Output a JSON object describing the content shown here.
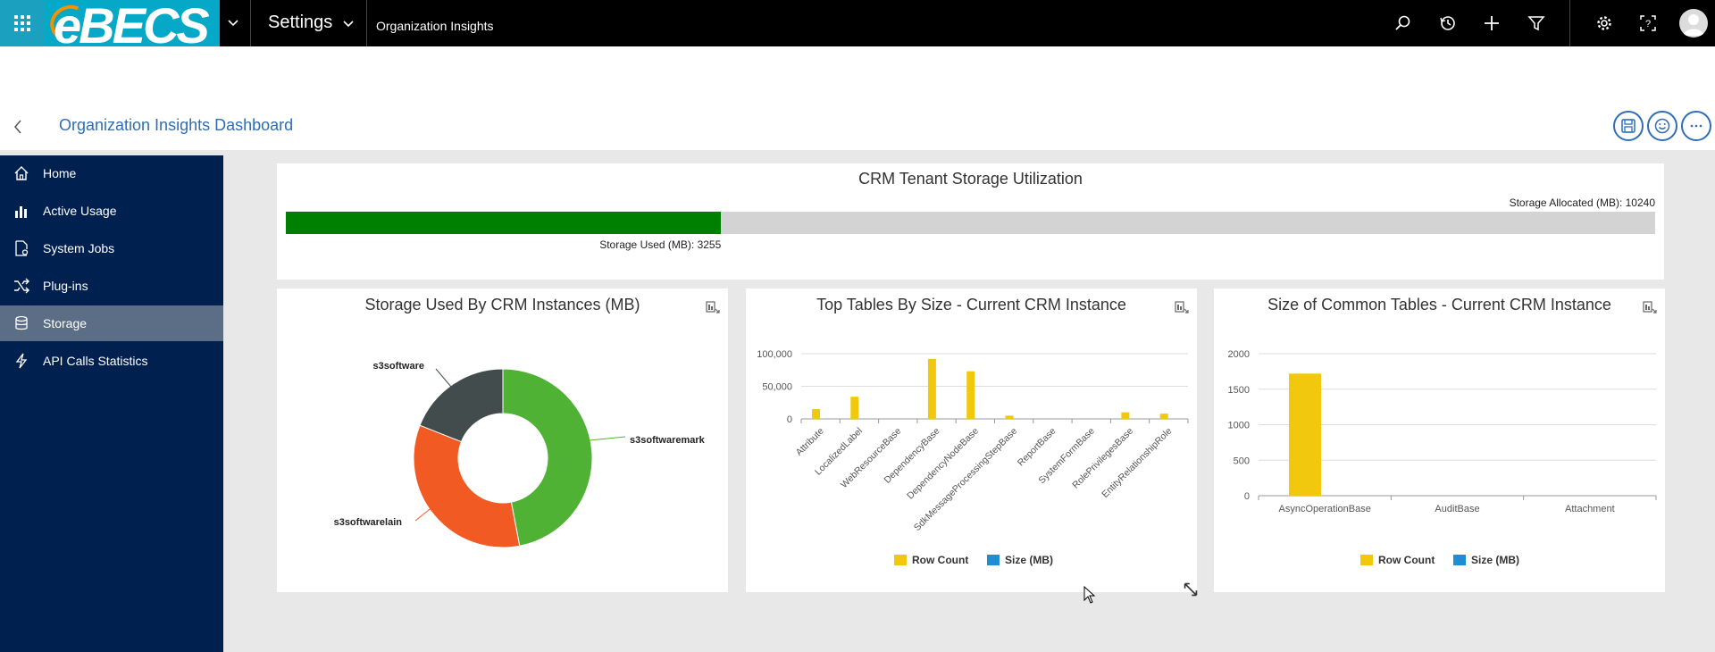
{
  "nav": {
    "area": "Settings",
    "crumb": "Organization Insights",
    "logo_text": "eBECS"
  },
  "header": {
    "title": "Organization Insights Dashboard"
  },
  "sidebar": {
    "items": [
      {
        "label": "Home",
        "icon": "home-icon"
      },
      {
        "label": "Active Usage",
        "icon": "bar-chart-icon"
      },
      {
        "label": "System Jobs",
        "icon": "document-settings-icon"
      },
      {
        "label": "Plug-ins",
        "icon": "shuffle-icon"
      },
      {
        "label": "Storage",
        "icon": "database-icon",
        "active": true
      },
      {
        "label": "API Calls Statistics",
        "icon": "lightning-icon"
      }
    ]
  },
  "storage_card": {
    "title": "CRM Tenant Storage Utilization",
    "allocated_label": "Storage Allocated (MB): 10240",
    "used_label": "Storage Used (MB): 3255",
    "used_mb": 3255,
    "allocated_mb": 10240,
    "bar_color": "#008000",
    "track_color": "#d3d3d3"
  },
  "colors": {
    "accent": "#2f6db5",
    "sidebar": "#002050",
    "row_count": "#f2c80f",
    "size_mb": "#01b8aa"
  },
  "chart_data": [
    {
      "type": "pie",
      "title": "Storage Used By CRM Instances (MB)",
      "donut": true,
      "slices": [
        {
          "label": "s3softwaremark",
          "value": 47,
          "color": "#4fb234"
        },
        {
          "label": "s3softwarelain",
          "value": 34,
          "color": "#f15a22"
        },
        {
          "label": "s3software",
          "value": 19,
          "color": "#424c4c"
        }
      ]
    },
    {
      "type": "bar",
      "title": "Top Tables By Size - Current CRM Instance",
      "categories": [
        "Attribute",
        "LocalizedLabel",
        "WebResourceBase",
        "DependencyBase",
        "DependencyNodeBase",
        "SdkMessageProcessingStepBase",
        "ReportBase",
        "SystemFormBase",
        "RolePrivilegesBase",
        "EntityRelationshipRole"
      ],
      "series": [
        {
          "name": "Row Count",
          "color": "#f2c80f",
          "values": [
            15000,
            34000,
            0,
            92000,
            73000,
            5000,
            0,
            0,
            10000,
            8000
          ]
        },
        {
          "name": "Size (MB)",
          "color": "#1f8dd6",
          "values": [
            0,
            0,
            0,
            0,
            0,
            0,
            0,
            0,
            0,
            0
          ]
        }
      ],
      "ylim": [
        0,
        100000
      ],
      "yticks": [
        "0",
        "50,000",
        "100,000"
      ],
      "ytick_values": [
        0,
        50000,
        100000
      ],
      "grid": true,
      "legend": "bottom"
    },
    {
      "type": "bar",
      "title": "Size of Common Tables - Current CRM Instance",
      "categories": [
        "AsyncOperationBase",
        "AuditBase",
        "Attachment"
      ],
      "series": [
        {
          "name": "Row Count",
          "color": "#f2c80f",
          "values": [
            1720,
            0,
            0
          ]
        },
        {
          "name": "Size (MB)",
          "color": "#1f8dd6",
          "values": [
            0,
            0,
            0
          ]
        }
      ],
      "ylim": [
        0,
        2000
      ],
      "yticks": [
        "0",
        "500",
        "1000",
        "1500",
        "2000"
      ],
      "ytick_values": [
        0,
        500,
        1000,
        1500,
        2000
      ],
      "grid": true,
      "legend": "bottom"
    }
  ]
}
